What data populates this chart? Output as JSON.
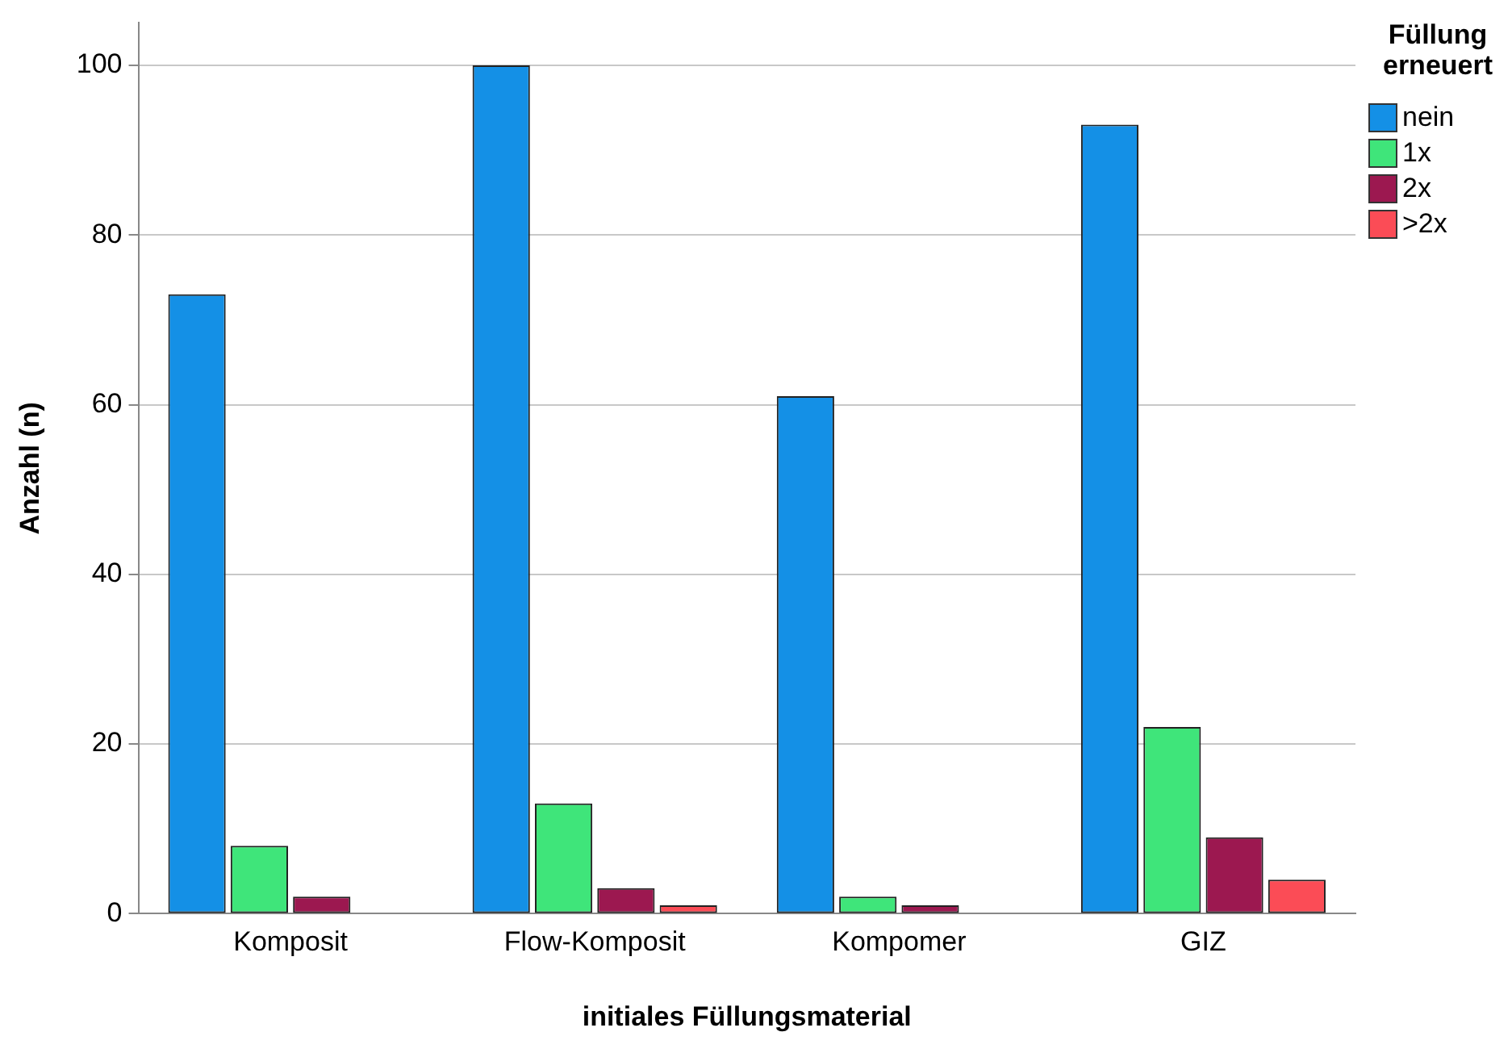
{
  "chart_data": {
    "type": "bar",
    "xlabel": "initiales Füllungsmaterial",
    "ylabel": "Anzahl (n)",
    "legend_title": "Füllung erneuert",
    "legend": "top right",
    "grid": "y",
    "categories": [
      "Komposit",
      "Flow-Komposit",
      "Kompomer",
      "GIZ"
    ],
    "series": [
      {
        "name": "nein",
        "color": "#1490e6",
        "values": [
          73,
          100,
          61,
          93
        ]
      },
      {
        "name": "1x",
        "color": "#3fe57a",
        "values": [
          8,
          13,
          2,
          22
        ]
      },
      {
        "name": "2x",
        "color": "#9c1850",
        "values": [
          2,
          3,
          1,
          9
        ]
      },
      {
        "name": ">2x",
        "color": "#fb4c56",
        "values": [
          null,
          1,
          null,
          4
        ]
      }
    ],
    "ylim": [
      0,
      105
    ],
    "yticks": [
      0,
      20,
      40,
      60,
      80,
      100
    ]
  }
}
